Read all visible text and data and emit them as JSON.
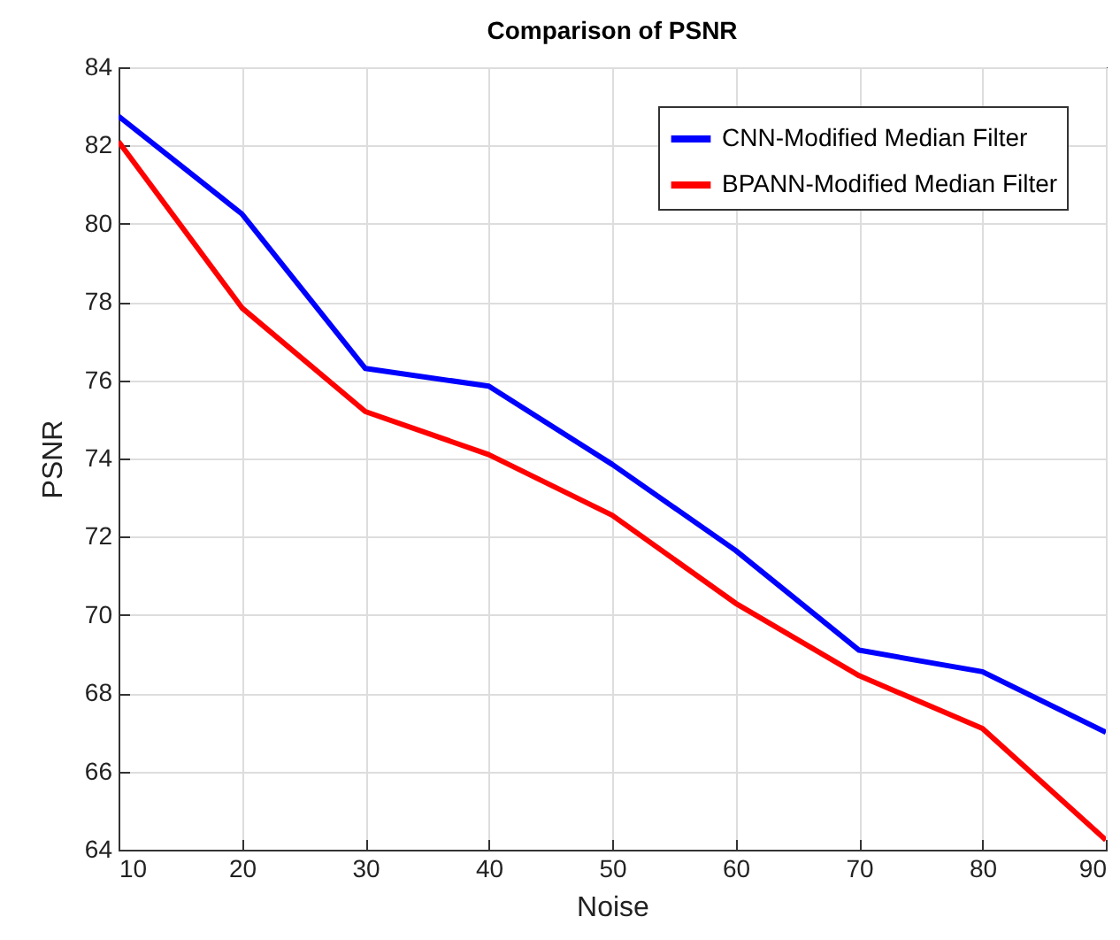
{
  "chart_data": {
    "type": "line",
    "title": "Comparison of PSNR",
    "xlabel": "Noise",
    "ylabel": "PSNR",
    "x": [
      10,
      20,
      30,
      40,
      50,
      60,
      70,
      80,
      90
    ],
    "series": [
      {
        "name": "CNN-Modified Median Filter",
        "color": "#0000ff",
        "values": [
          82.75,
          80.25,
          76.3,
          75.85,
          73.85,
          71.65,
          69.1,
          68.55,
          67.0
        ]
      },
      {
        "name": "BPANN-Modified Median Filter",
        "color": "#ff0000",
        "values": [
          82.1,
          77.85,
          75.2,
          74.1,
          72.55,
          70.3,
          68.45,
          67.1,
          64.25
        ]
      }
    ],
    "xlim": [
      10,
      90
    ],
    "xticks": [
      10,
      20,
      30,
      40,
      50,
      60,
      70,
      80,
      90
    ],
    "ylim": [
      64,
      84
    ],
    "yticks": [
      64,
      66,
      68,
      70,
      72,
      74,
      76,
      78,
      80,
      82,
      84
    ],
    "grid": true,
    "legend": "top right",
    "line_style": "solid"
  }
}
